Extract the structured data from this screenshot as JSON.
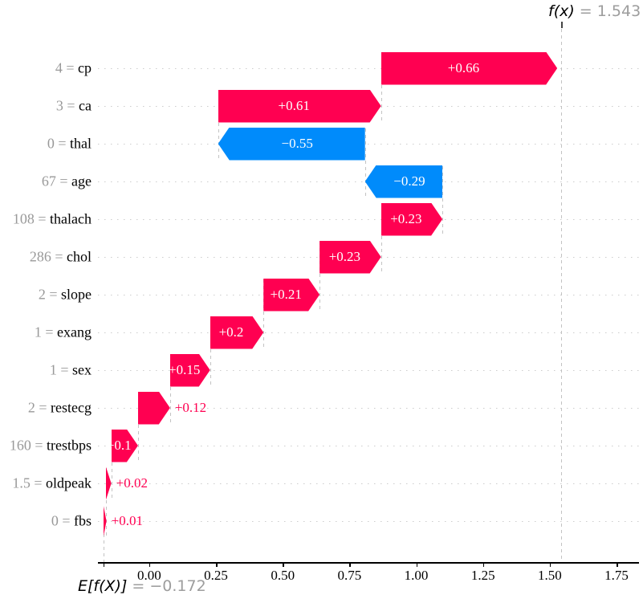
{
  "chart_data": {
    "type": "bar",
    "subtype": "shap-waterfall",
    "title": "",
    "xlabel": "",
    "ylabel": "",
    "grid": "horizontal-dotted",
    "legend": null,
    "fx_label": "f(x)",
    "fx_value": 1.543,
    "fx_value_text": " = 1.543",
    "base_label": "E[f(X)]",
    "base_value": -0.172,
    "base_value_text": " = −0.172",
    "equals_text": " = ",
    "xlim": [
      -0.192,
      1.834
    ],
    "x_tick_values": [
      0.0,
      0.25,
      0.5,
      0.75,
      1.0,
      1.25,
      1.5,
      1.75
    ],
    "x_tick_labels": [
      "0.00",
      "0.25",
      "0.50",
      "0.75",
      "1.00",
      "1.25",
      "1.50",
      "1.75"
    ],
    "features": [
      {
        "name": "cp",
        "value": "4",
        "shap": 0.66,
        "label": "+0.66"
      },
      {
        "name": "ca",
        "value": "3",
        "shap": 0.61,
        "label": "+0.61"
      },
      {
        "name": "thal",
        "value": "0",
        "shap": -0.55,
        "label": "−0.55"
      },
      {
        "name": "age",
        "value": "67",
        "shap": -0.29,
        "label": "−0.29"
      },
      {
        "name": "thalach",
        "value": "108",
        "shap": 0.23,
        "label": "+0.23"
      },
      {
        "name": "chol",
        "value": "286",
        "shap": 0.23,
        "label": "+0.23"
      },
      {
        "name": "slope",
        "value": "2",
        "shap": 0.21,
        "label": "+0.21"
      },
      {
        "name": "exang",
        "value": "1",
        "shap": 0.2,
        "label": "+0.2"
      },
      {
        "name": "sex",
        "value": "1",
        "shap": 0.15,
        "label": "+0.15"
      },
      {
        "name": "restecg",
        "value": "2",
        "shap": 0.12,
        "label": "+0.12"
      },
      {
        "name": "trestbps",
        "value": "160",
        "shap": 0.1,
        "label": "+0.1"
      },
      {
        "name": "oldpeak",
        "value": "1.5",
        "shap": 0.02,
        "label": "+0.02"
      },
      {
        "name": "fbs",
        "value": "0",
        "shap": 0.01,
        "label": "+0.01"
      }
    ],
    "colors": {
      "positive": "#ff0051",
      "negative": "#008bfb",
      "bar_label": "#ffffff",
      "muted_text": "#999999",
      "grid": "#cccccc",
      "connector": "#bbbbbb",
      "axis": "#000000"
    }
  }
}
